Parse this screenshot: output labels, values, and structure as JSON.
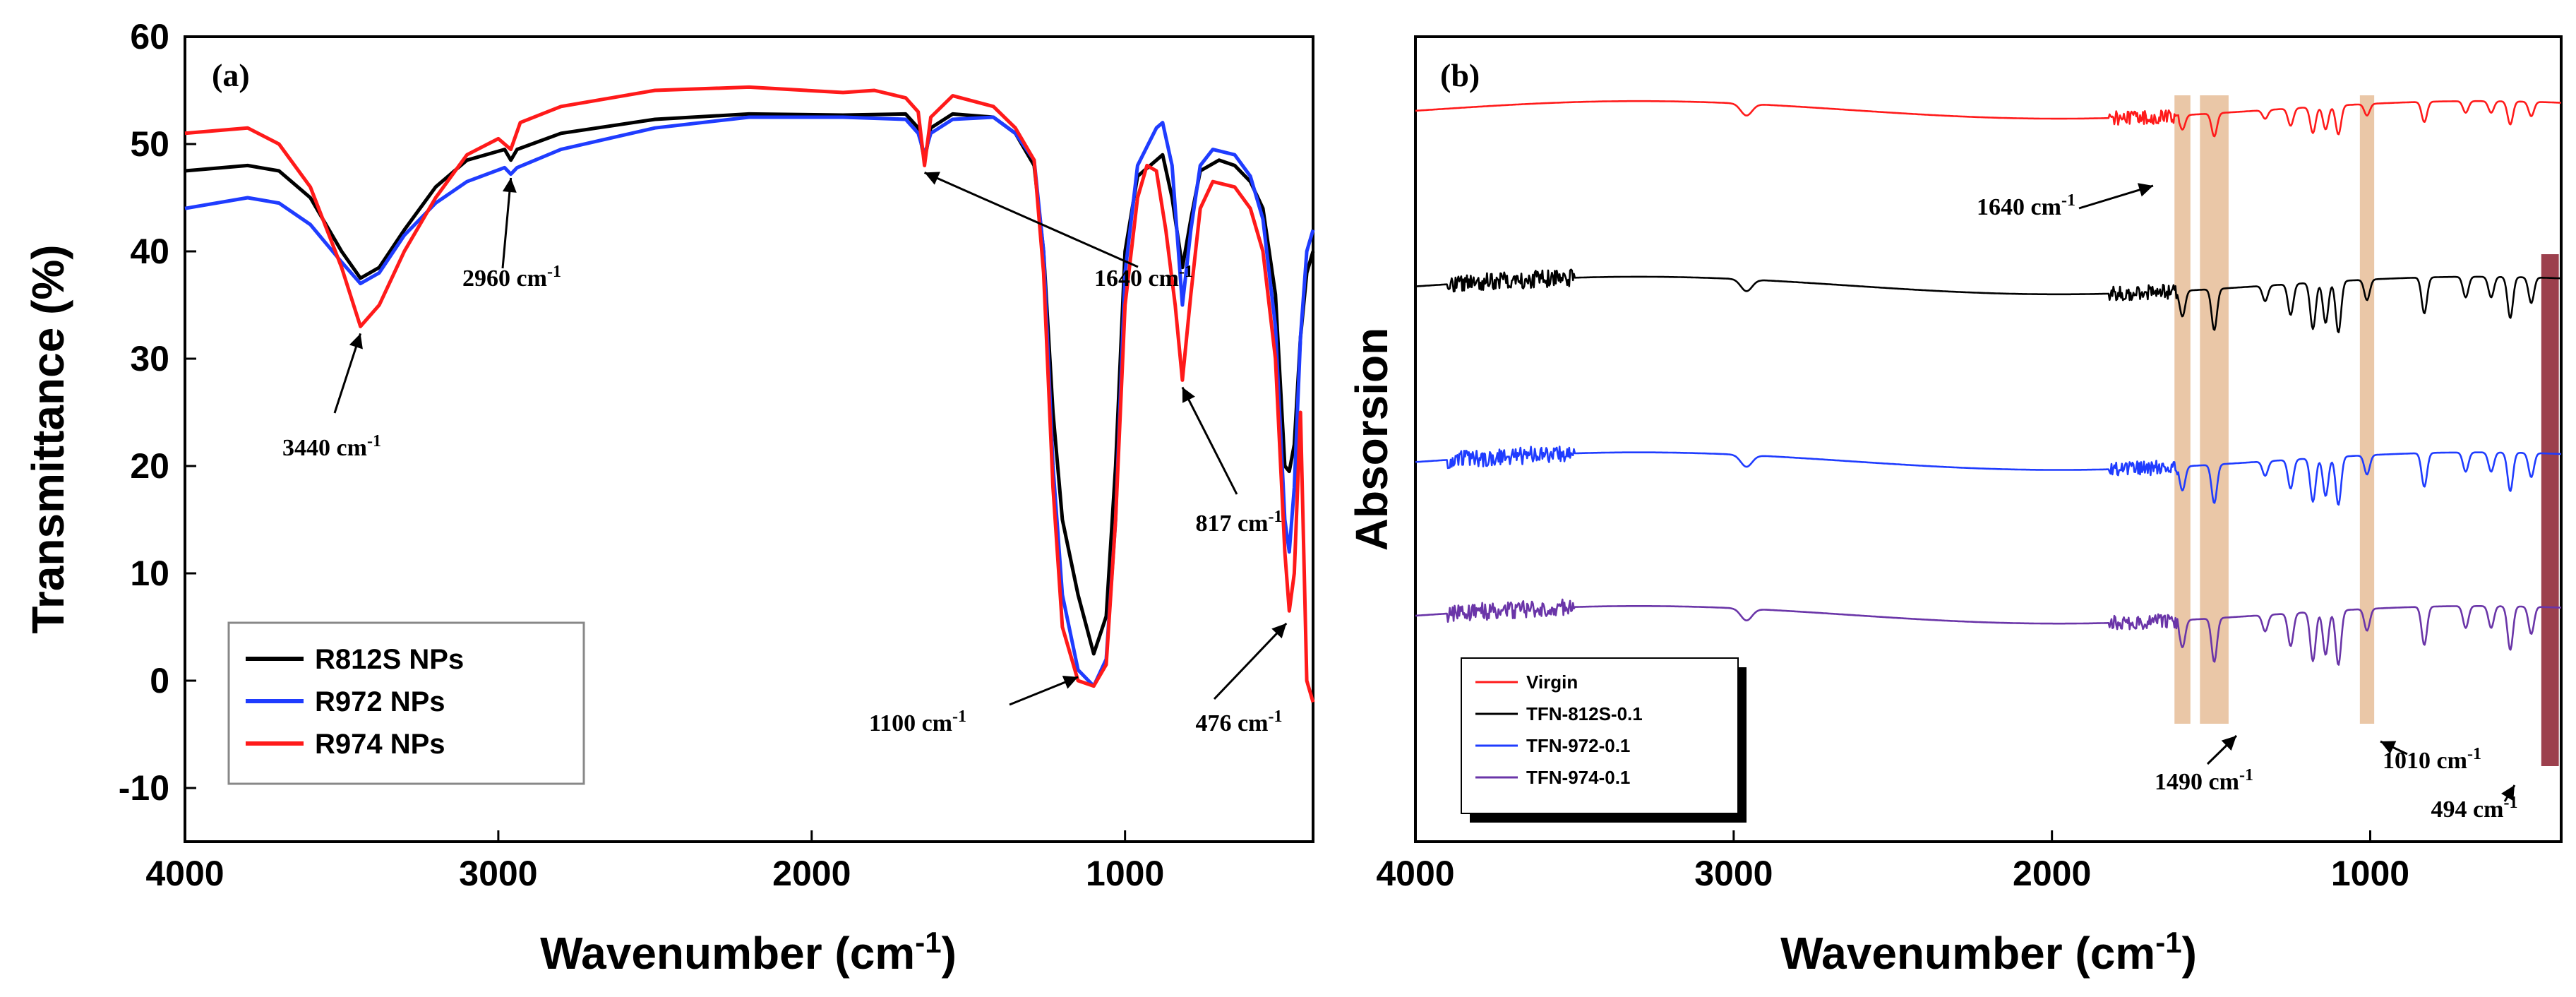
{
  "chart_data": [
    {
      "type": "line",
      "panel": "(a)",
      "xlabel_main": "Wavenumber (cm",
      "xlabel_sup": "-1",
      "xlabel_end": ")",
      "ylabel": "Transmittance (%)",
      "xlim": [
        4000,
        400
      ],
      "ylim": [
        -15,
        60
      ],
      "xticks": [
        4000,
        3000,
        2000,
        1000
      ],
      "yticks": [
        60,
        50,
        40,
        30,
        20,
        10,
        0,
        -10
      ],
      "legend": {
        "position": "bottom-left"
      },
      "annotations": [
        {
          "label": "3440 cm",
          "sup": "-1",
          "x": 3440,
          "y": 33
        },
        {
          "label": "2960 cm",
          "sup": "-1",
          "x": 2960,
          "y": 47.5
        },
        {
          "label": "1640 cm",
          "sup": "-1",
          "x": 1640,
          "y": 48
        },
        {
          "label": "817 cm",
          "sup": "-1",
          "x": 817,
          "y": 28
        },
        {
          "label": "1100 cm",
          "sup": "-1",
          "x": 1150,
          "y": 1
        },
        {
          "label": "476 cm",
          "sup": "-1",
          "x": 476,
          "y": 6
        }
      ],
      "series": [
        {
          "name": "R812S NPs",
          "color": "#000000",
          "points": [
            [
              4000,
              47.5
            ],
            [
              3800,
              48
            ],
            [
              3700,
              47.5
            ],
            [
              3600,
              45
            ],
            [
              3500,
              40
            ],
            [
              3440,
              37.5
            ],
            [
              3380,
              38.5
            ],
            [
              3300,
              42
            ],
            [
              3200,
              46
            ],
            [
              3100,
              48.5
            ],
            [
              2980,
              49.5
            ],
            [
              2960,
              48.5
            ],
            [
              2940,
              49.5
            ],
            [
              2800,
              51
            ],
            [
              2500,
              52.3
            ],
            [
              2200,
              52.8
            ],
            [
              1900,
              52.7
            ],
            [
              1700,
              52.8
            ],
            [
              1660,
              51.5
            ],
            [
              1640,
              48.5
            ],
            [
              1620,
              51.5
            ],
            [
              1550,
              52.8
            ],
            [
              1420,
              52.5
            ],
            [
              1350,
              51
            ],
            [
              1290,
              48
            ],
            [
              1260,
              40
            ],
            [
              1230,
              25
            ],
            [
              1200,
              15
            ],
            [
              1150,
              8
            ],
            [
              1100,
              2.5
            ],
            [
              1060,
              6
            ],
            [
              1030,
              20
            ],
            [
              1000,
              40
            ],
            [
              960,
              47
            ],
            [
              900,
              48.5
            ],
            [
              880,
              49
            ],
            [
              850,
              45
            ],
            [
              817,
              38.5
            ],
            [
              790,
              43
            ],
            [
              760,
              47.5
            ],
            [
              700,
              48.5
            ],
            [
              650,
              48
            ],
            [
              600,
              46.5
            ],
            [
              560,
              44
            ],
            [
              520,
              36
            ],
            [
              490,
              20
            ],
            [
              476,
              19.5
            ],
            [
              460,
              22
            ],
            [
              440,
              32
            ],
            [
              420,
              38
            ],
            [
              400,
              40
            ]
          ]
        },
        {
          "name": "R972 NPs",
          "color": "#1f3cff",
          "points": [
            [
              4000,
              44
            ],
            [
              3800,
              45
            ],
            [
              3700,
              44.5
            ],
            [
              3600,
              42.5
            ],
            [
              3500,
              39
            ],
            [
              3440,
              37
            ],
            [
              3380,
              38
            ],
            [
              3300,
              41.5
            ],
            [
              3200,
              44.5
            ],
            [
              3100,
              46.5
            ],
            [
              2980,
              47.8
            ],
            [
              2960,
              47.2
            ],
            [
              2940,
              47.8
            ],
            [
              2800,
              49.5
            ],
            [
              2500,
              51.5
            ],
            [
              2200,
              52.5
            ],
            [
              1900,
              52.5
            ],
            [
              1700,
              52.3
            ],
            [
              1660,
              51
            ],
            [
              1640,
              49
            ],
            [
              1620,
              51
            ],
            [
              1550,
              52.3
            ],
            [
              1420,
              52.5
            ],
            [
              1350,
              51
            ],
            [
              1290,
              48.5
            ],
            [
              1260,
              40
            ],
            [
              1230,
              20
            ],
            [
              1200,
              8
            ],
            [
              1150,
              1
            ],
            [
              1100,
              -0.5
            ],
            [
              1060,
              2
            ],
            [
              1030,
              15
            ],
            [
              1000,
              38
            ],
            [
              960,
              48
            ],
            [
              900,
              51.5
            ],
            [
              880,
              52
            ],
            [
              850,
              48
            ],
            [
              817,
              35
            ],
            [
              790,
              42
            ],
            [
              760,
              48
            ],
            [
              720,
              49.5
            ],
            [
              650,
              49
            ],
            [
              600,
              47
            ],
            [
              560,
              43
            ],
            [
              520,
              33
            ],
            [
              490,
              15
            ],
            [
              476,
              12
            ],
            [
              460,
              18
            ],
            [
              440,
              32
            ],
            [
              420,
              40
            ],
            [
              400,
              42
            ]
          ]
        },
        {
          "name": "R974 NPs",
          "color": "#ff1a1a",
          "points": [
            [
              4000,
              51
            ],
            [
              3800,
              51.5
            ],
            [
              3700,
              50
            ],
            [
              3600,
              46
            ],
            [
              3500,
              38.5
            ],
            [
              3440,
              33
            ],
            [
              3380,
              35
            ],
            [
              3300,
              40
            ],
            [
              3200,
              45
            ],
            [
              3100,
              49
            ],
            [
              3000,
              50.5
            ],
            [
              2960,
              49.5
            ],
            [
              2930,
              52
            ],
            [
              2800,
              53.5
            ],
            [
              2500,
              55
            ],
            [
              2200,
              55.3
            ],
            [
              1900,
              54.8
            ],
            [
              1800,
              55
            ],
            [
              1700,
              54.3
            ],
            [
              1660,
              53
            ],
            [
              1640,
              48
            ],
            [
              1620,
              52.5
            ],
            [
              1550,
              54.5
            ],
            [
              1420,
              53.5
            ],
            [
              1350,
              51.5
            ],
            [
              1290,
              48.5
            ],
            [
              1260,
              38
            ],
            [
              1230,
              18
            ],
            [
              1200,
              5
            ],
            [
              1150,
              0
            ],
            [
              1100,
              -0.5
            ],
            [
              1060,
              1.5
            ],
            [
              1030,
              15
            ],
            [
              1000,
              35
            ],
            [
              960,
              45
            ],
            [
              930,
              48
            ],
            [
              900,
              47.5
            ],
            [
              870,
              42
            ],
            [
              840,
              35
            ],
            [
              817,
              28
            ],
            [
              790,
              36
            ],
            [
              760,
              44
            ],
            [
              720,
              46.5
            ],
            [
              650,
              46
            ],
            [
              600,
              44
            ],
            [
              560,
              40
            ],
            [
              520,
              30
            ],
            [
              490,
              12
            ],
            [
              476,
              6.5
            ],
            [
              460,
              10
            ],
            [
              440,
              25
            ],
            [
              420,
              0
            ],
            [
              400,
              -2
            ]
          ]
        }
      ]
    },
    {
      "type": "line",
      "panel": "(b)",
      "xlabel_main": "Wavenumber (cm",
      "xlabel_sup": "-1",
      "xlabel_end": ")",
      "ylabel": "Absorsion",
      "xlim": [
        4000,
        400
      ],
      "xticks": [
        4000,
        3000,
        2000,
        1000
      ],
      "legend": {
        "position": "bottom-left"
      },
      "bands": [
        {
          "center": 1590,
          "width": 50,
          "color": "#e3b48a"
        },
        {
          "center": 1490,
          "width": 90,
          "color": "#e3b48a"
        },
        {
          "center": 1010,
          "width": 45,
          "color": "#e3b48a"
        },
        {
          "center": 435,
          "width": 55,
          "color": "#8b1f2e"
        }
      ],
      "annotations": [
        {
          "label": "1640 cm",
          "sup": "-1",
          "x": 1640
        },
        {
          "label": "1490 cm",
          "sup": "-1",
          "x": 1490
        },
        {
          "label": "1010 cm",
          "sup": "-1",
          "x": 1010
        },
        {
          "label": "494 cm",
          "sup": "-1",
          "x": 494
        }
      ],
      "peaks": [
        {
          "x": 1590,
          "depth": 0.5
        },
        {
          "x": 1490,
          "depth": 0.8
        },
        {
          "x": 1330,
          "depth": 0.3
        },
        {
          "x": 1250,
          "depth": 0.6
        },
        {
          "x": 1180,
          "depth": 0.9
        },
        {
          "x": 1140,
          "depth": 0.8
        },
        {
          "x": 1100,
          "depth": 1.0
        },
        {
          "x": 1010,
          "depth": 0.4
        },
        {
          "x": 830,
          "depth": 0.7
        },
        {
          "x": 700,
          "depth": 0.4
        },
        {
          "x": 620,
          "depth": 0.4
        },
        {
          "x": 560,
          "depth": 0.8
        },
        {
          "x": 494,
          "depth": 0.5
        }
      ],
      "series": [
        {
          "name": "Virgin",
          "color": "#ff1a1a",
          "baseline": 5.0,
          "scale": 0.9
        },
        {
          "name": "TFN-812S-0.1",
          "color": "#000000",
          "baseline": 3.8,
          "scale": 1.6
        },
        {
          "name": "TFN-972-0.1",
          "color": "#1f3cff",
          "baseline": 2.6,
          "scale": 1.5
        },
        {
          "name": "TFN-974-0.1",
          "color": "#6a35a8",
          "baseline": 1.55,
          "scale": 1.7
        }
      ]
    }
  ]
}
